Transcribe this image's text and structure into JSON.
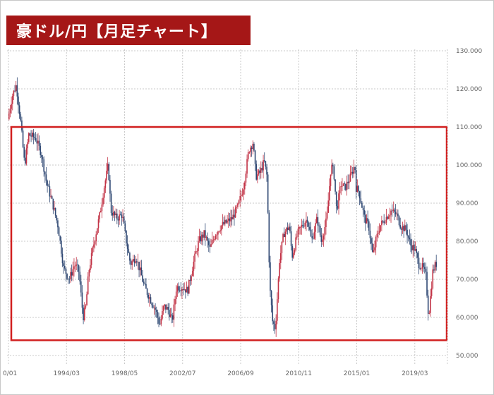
{
  "title": "豪ドル/円【月足チャート】",
  "colors": {
    "banner": "#a51717",
    "up_candle": "#c23346",
    "down_candle": "#2f4873",
    "highlight_box": "#d11f1f",
    "grid": "#c9c9c9"
  },
  "chart_data": {
    "type": "candlestick",
    "title": "豪ドル/円【月足チャート】",
    "xlabel": "",
    "ylabel": "",
    "x_tick_labels": [
      "0/01",
      "1994/03",
      "1998/05",
      "2002/07",
      "2006/09",
      "2010/11",
      "2015/01",
      "2019/03"
    ],
    "x_tick_times": [
      1990.0,
      1994.167,
      1998.333,
      2002.5,
      2006.667,
      2010.833,
      2015.0,
      2019.167
    ],
    "y_tick_labels": [
      "130.000",
      "120.000",
      "110.000",
      "100.000",
      "90.000",
      "80.000",
      "70.000",
      "60.000",
      "50.000"
    ],
    "ylim": [
      50,
      130
    ],
    "xlim": [
      1990.0,
      2020.8
    ],
    "grid": true,
    "highlight_range": {
      "y_low": 54,
      "y_high": 110
    },
    "close_series": {
      "description": "monthly close path (time in years, price in JPY)",
      "points": [
        [
          1990.0,
          112
        ],
        [
          1990.3,
          118
        ],
        [
          1990.6,
          121
        ],
        [
          1990.9,
          112
        ],
        [
          1991.2,
          100
        ],
        [
          1991.5,
          108
        ],
        [
          1992.0,
          107
        ],
        [
          1992.4,
          103
        ],
        [
          1992.8,
          95
        ],
        [
          1993.2,
          90
        ],
        [
          1993.6,
          84
        ],
        [
          1994.0,
          73
        ],
        [
          1994.4,
          70
        ],
        [
          1994.8,
          74
        ],
        [
          1995.1,
          72
        ],
        [
          1995.4,
          60
        ],
        [
          1995.6,
          63
        ],
        [
          1995.8,
          72
        ],
        [
          1996.2,
          80
        ],
        [
          1996.6,
          87
        ],
        [
          1996.9,
          94
        ],
        [
          1997.2,
          100
        ],
        [
          1997.4,
          88
        ],
        [
          1997.8,
          86
        ],
        [
          1998.2,
          87
        ],
        [
          1998.5,
          80
        ],
        [
          1998.8,
          74
        ],
        [
          1999.2,
          76
        ],
        [
          1999.5,
          72
        ],
        [
          1999.8,
          68
        ],
        [
          2000.2,
          65
        ],
        [
          2000.6,
          62
        ],
        [
          2000.9,
          58
        ],
        [
          2001.2,
          63
        ],
        [
          2001.5,
          62
        ],
        [
          2001.8,
          59
        ],
        [
          2002.1,
          68
        ],
        [
          2002.5,
          68
        ],
        [
          2002.9,
          67
        ],
        [
          2003.3,
          74
        ],
        [
          2003.7,
          80
        ],
        [
          2004.1,
          82
        ],
        [
          2004.5,
          78
        ],
        [
          2004.9,
          82
        ],
        [
          2005.3,
          84
        ],
        [
          2005.7,
          85
        ],
        [
          2006.1,
          86
        ],
        [
          2006.5,
          89
        ],
        [
          2006.9,
          94
        ],
        [
          2007.3,
          104
        ],
        [
          2007.6,
          106
        ],
        [
          2007.8,
          97
        ],
        [
          2008.1,
          98
        ],
        [
          2008.4,
          101
        ],
        [
          2008.6,
          97
        ],
        [
          2008.8,
          68
        ],
        [
          2009.0,
          59
        ],
        [
          2009.2,
          57
        ],
        [
          2009.5,
          75
        ],
        [
          2009.8,
          82
        ],
        [
          2010.2,
          84
        ],
        [
          2010.4,
          76
        ],
        [
          2010.8,
          82
        ],
        [
          2011.1,
          84
        ],
        [
          2011.5,
          86
        ],
        [
          2011.8,
          80
        ],
        [
          2012.2,
          86
        ],
        [
          2012.5,
          80
        ],
        [
          2012.9,
          86
        ],
        [
          2013.2,
          100
        ],
        [
          2013.4,
          98
        ],
        [
          2013.6,
          88
        ],
        [
          2013.9,
          95
        ],
        [
          2014.2,
          94
        ],
        [
          2014.6,
          97
        ],
        [
          2014.9,
          100
        ],
        [
          2015.0,
          94
        ],
        [
          2015.2,
          93
        ],
        [
          2015.6,
          86
        ],
        [
          2015.9,
          84
        ],
        [
          2016.2,
          76
        ],
        [
          2016.4,
          80
        ],
        [
          2016.7,
          84
        ],
        [
          2017.1,
          86
        ],
        [
          2017.5,
          88
        ],
        [
          2017.9,
          87
        ],
        [
          2018.2,
          84
        ],
        [
          2018.6,
          83
        ],
        [
          2018.9,
          79
        ],
        [
          2019.2,
          78
        ],
        [
          2019.5,
          74
        ],
        [
          2019.8,
          73
        ],
        [
          2020.0,
          71
        ],
        [
          2020.2,
          60
        ],
        [
          2020.5,
          72
        ],
        [
          2020.7,
          74
        ]
      ]
    }
  }
}
